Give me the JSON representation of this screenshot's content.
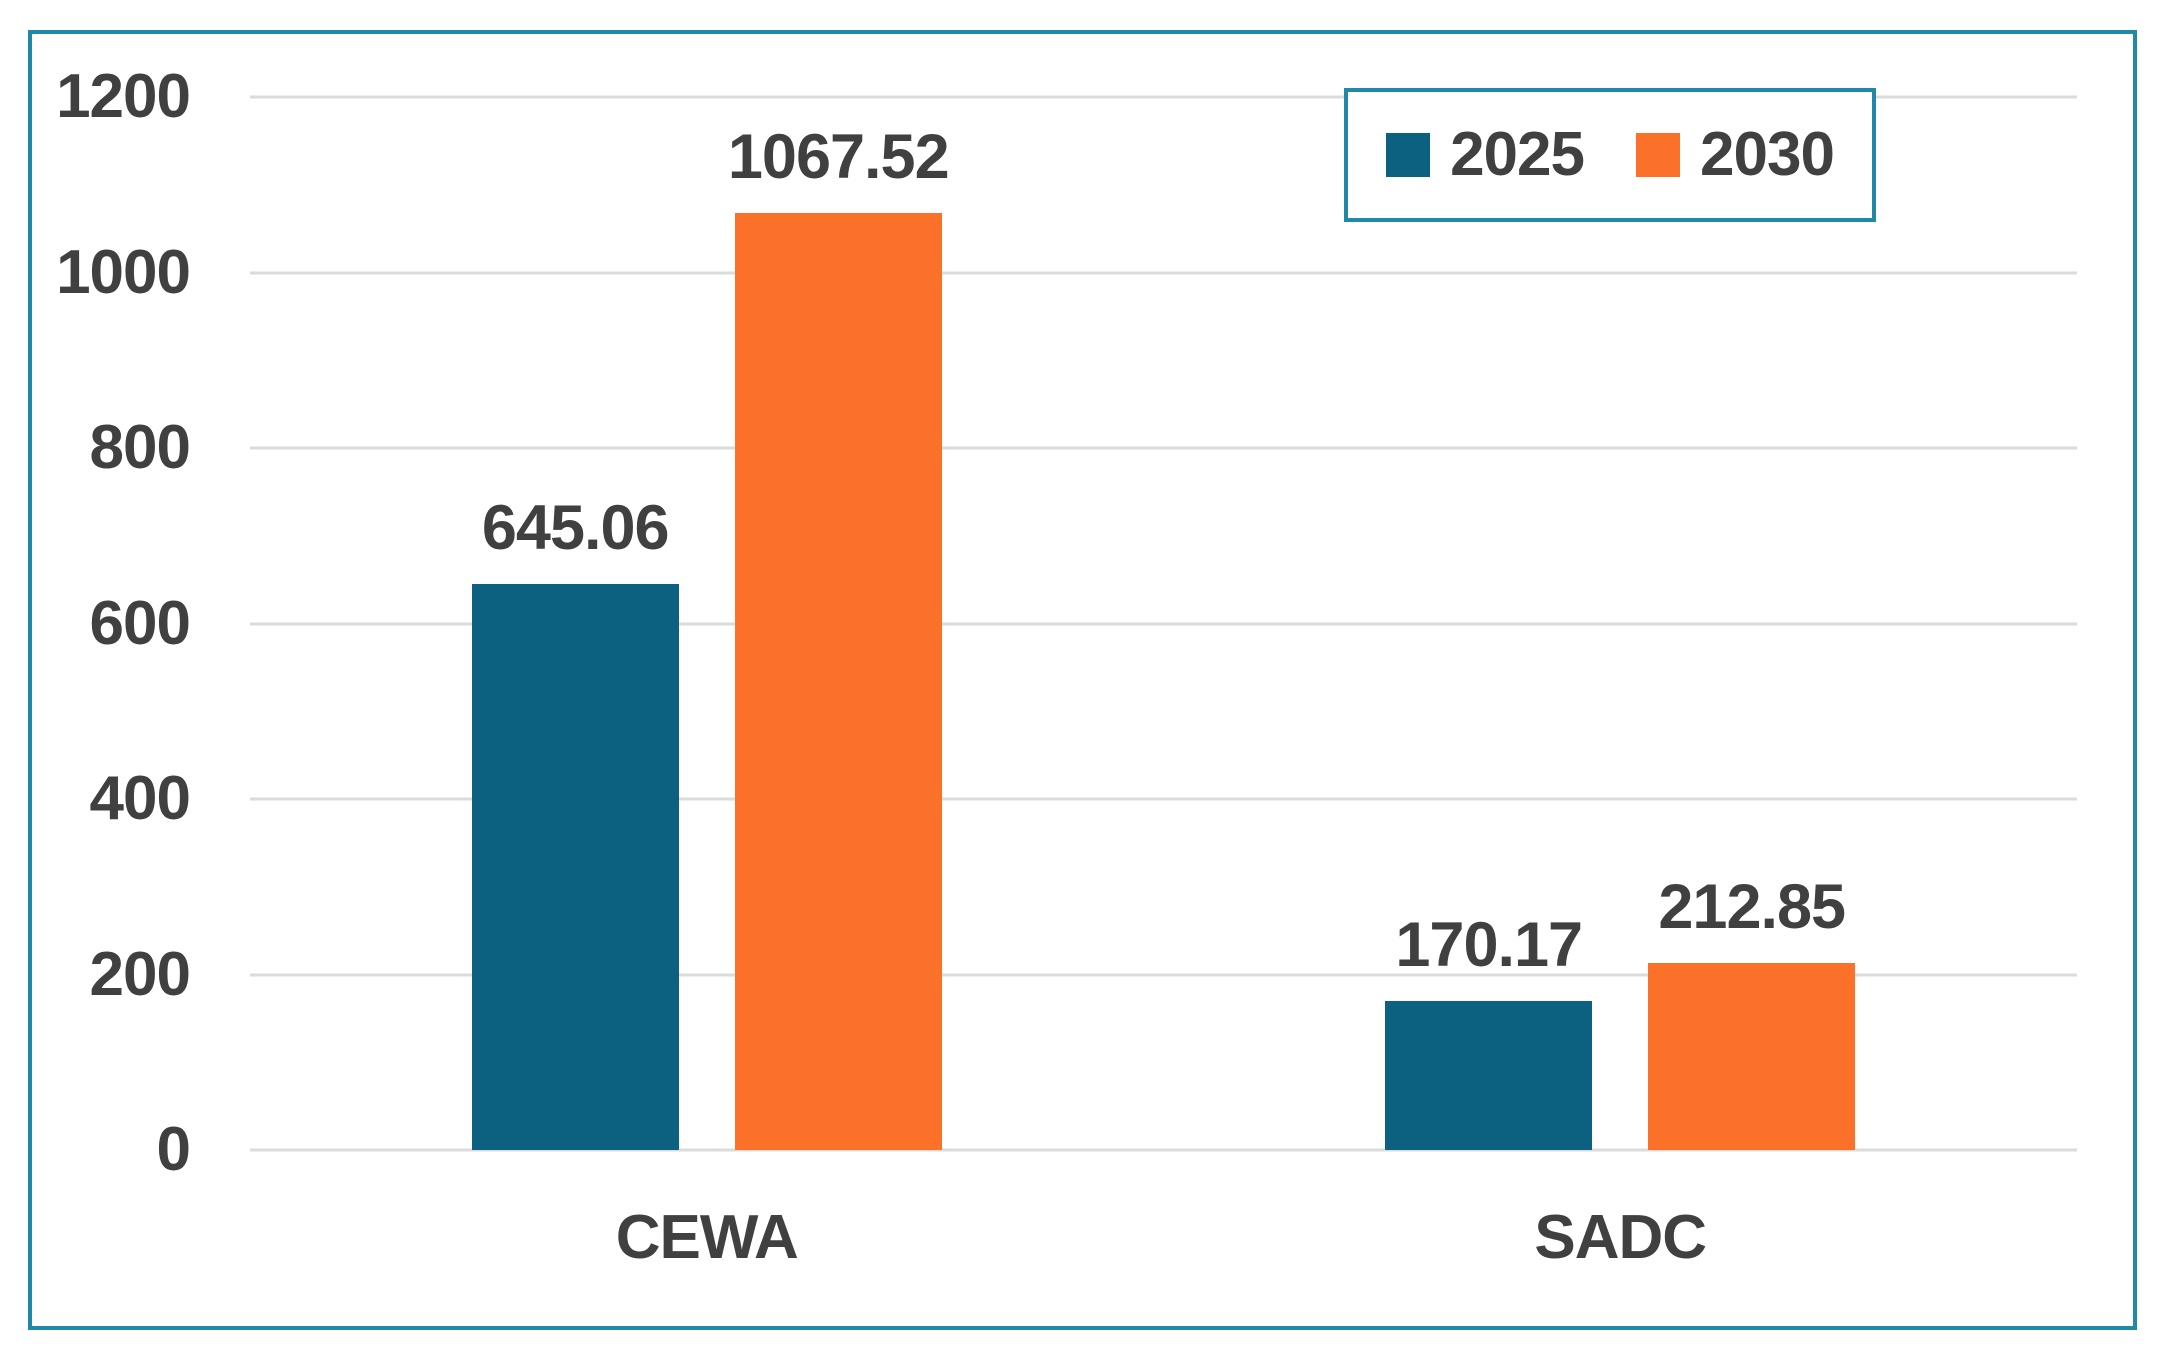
{
  "chart_data": {
    "type": "bar",
    "categories": [
      "CEWA",
      "SADC"
    ],
    "series": [
      {
        "name": "2025",
        "color": "#0B617F",
        "values": [
          645.06,
          170.17
        ],
        "value_labels": [
          "645.06",
          "170.17"
        ]
      },
      {
        "name": "2030",
        "color": "#FC7129",
        "values": [
          1067.52,
          212.85
        ],
        "value_labels": [
          "1067.52",
          "212.85"
        ]
      }
    ],
    "title": "",
    "xlabel": "",
    "ylabel": "",
    "ylim": [
      0,
      1200
    ],
    "yticks": [
      0,
      200,
      400,
      600,
      800,
      1000,
      1200
    ],
    "grid": true,
    "value_labels_shown": true,
    "legend": {
      "entries": [
        "2025",
        "2030"
      ],
      "position": "top-right"
    }
  },
  "colors": {
    "series_2025": "#0B617F",
    "series_2030": "#FC7129",
    "border_teal": "#2088A8",
    "gridline": "#DBDBDB",
    "label_text": "#404040",
    "background": "#FFFFFF"
  }
}
